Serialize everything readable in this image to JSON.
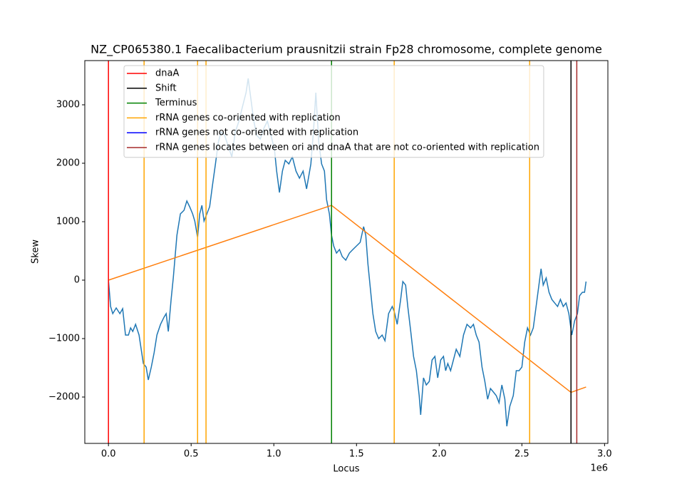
{
  "chart_data": {
    "type": "line",
    "title": "NZ_CP065380.1 Faecalibacterium prausnitzii strain Fp28 chromosome, complete genome",
    "xlabel": "Locus",
    "ylabel": "Skew",
    "x_offset_label": "1e6",
    "xlim": [
      -143000,
      3020000
    ],
    "ylim": [
      -2793,
      3756
    ],
    "xticks": [
      {
        "value": 0,
        "label": "0.0"
      },
      {
        "value": 500000,
        "label": "0.5"
      },
      {
        "value": 1000000,
        "label": "1.0"
      },
      {
        "value": 1500000,
        "label": "1.5"
      },
      {
        "value": 2000000,
        "label": "2.0"
      },
      {
        "value": 2500000,
        "label": "2.5"
      },
      {
        "value": 3000000,
        "label": "3.0"
      }
    ],
    "yticks": [
      {
        "value": -2000,
        "label": "−2000"
      },
      {
        "value": -1000,
        "label": "−1000"
      },
      0,
      1000,
      2000,
      3000
    ],
    "grid": false,
    "legend": "upper left",
    "series": [
      {
        "color": "#1f77b4",
        "x": [
          0,
          13000,
          26000,
          47000,
          69000,
          86000,
          103000,
          121000,
          134000,
          147000,
          164000,
          185000,
          198000,
          211000,
          228000,
          241000,
          259000,
          276000,
          293000,
          315000,
          336000,
          349000,
          362000,
          379000,
          392000,
          414000,
          435000,
          457000,
          474000,
          491000,
          509000,
          522000,
          539000,
          552000,
          565000,
          578000,
          595000,
          612000,
          629000,
          647000,
          664000,
          681000,
          703000,
          724000,
          746000,
          767000,
          789000,
          810000,
          832000,
          845000,
          862000,
          879000,
          897000,
          918000,
          940000,
          961000,
          983000,
          1004000,
          1017000,
          1034000,
          1052000,
          1069000,
          1091000,
          1112000,
          1134000,
          1155000,
          1177000,
          1198000,
          1224000,
          1241000,
          1254000,
          1272000,
          1289000,
          1306000,
          1319000,
          1336000,
          1349000,
          1362000,
          1379000,
          1397000,
          1414000,
          1435000,
          1457000,
          1478000,
          1500000,
          1522000,
          1543000,
          1556000,
          1569000,
          1586000,
          1599000,
          1616000,
          1634000,
          1655000,
          1672000,
          1694000,
          1716000,
          1728000,
          1746000,
          1767000,
          1780000,
          1797000,
          1810000,
          1828000,
          1845000,
          1862000,
          1879000,
          1888000,
          1905000,
          1922000,
          1940000,
          1957000,
          1974000,
          1991000,
          2009000,
          2026000,
          2039000,
          2052000,
          2069000,
          2086000,
          2103000,
          2125000,
          2147000,
          2168000,
          2190000,
          2207000,
          2224000,
          2241000,
          2259000,
          2276000,
          2293000,
          2310000,
          2328000,
          2345000,
          2362000,
          2379000,
          2397000,
          2409000,
          2427000,
          2448000,
          2466000,
          2483000,
          2500000,
          2517000,
          2534000,
          2552000,
          2569000,
          2586000,
          2603000,
          2616000,
          2629000,
          2647000,
          2664000,
          2681000,
          2698000,
          2716000,
          2733000,
          2750000,
          2767000,
          2784000,
          2802000,
          2819000,
          2836000,
          2849000,
          2866000,
          2879000,
          2888000
        ],
        "values": [
          0,
          -451,
          -573,
          -476,
          -573,
          -488,
          -939,
          -939,
          -817,
          -878,
          -756,
          -939,
          -1183,
          -1427,
          -1488,
          -1707,
          -1488,
          -1244,
          -939,
          -756,
          -634,
          -573,
          -878,
          -329,
          37,
          768,
          1134,
          1195,
          1354,
          1256,
          1134,
          1012,
          732,
          1134,
          1280,
          1012,
          1134,
          1256,
          1622,
          1988,
          2354,
          2537,
          2476,
          2293,
          2110,
          2537,
          2720,
          2963,
          3207,
          3451,
          3085,
          2720,
          2476,
          2415,
          2598,
          2720,
          2476,
          2232,
          1866,
          1500,
          1866,
          2049,
          1988,
          2110,
          1866,
          1744,
          1866,
          1561,
          1988,
          2598,
          3207,
          2354,
          1988,
          1866,
          1378,
          1134,
          768,
          585,
          463,
          524,
          402,
          341,
          463,
          524,
          585,
          646,
          915,
          768,
          280,
          -207,
          -573,
          -878,
          -1000,
          -939,
          -1037,
          -573,
          -451,
          -537,
          -756,
          -329,
          -24,
          -85,
          -451,
          -878,
          -1305,
          -1549,
          -1976,
          -2305,
          -1671,
          -1793,
          -1732,
          -1366,
          -1305,
          -1671,
          -1366,
          -1305,
          -1549,
          -1427,
          -1549,
          -1366,
          -1183,
          -1305,
          -939,
          -756,
          -817,
          -756,
          -939,
          -1061,
          -1488,
          -1732,
          -2037,
          -1854,
          -1915,
          -1976,
          -2098,
          -1793,
          -2037,
          -2500,
          -2159,
          -1976,
          -1549,
          -1549,
          -1488,
          -1061,
          -817,
          -939,
          -817,
          -451,
          -85,
          195,
          -85,
          37,
          -207,
          -329,
          -390,
          -451,
          -329,
          -451,
          -390,
          -573,
          -939,
          -695,
          -573,
          -268,
          -207,
          -207,
          -24
        ]
      },
      {
        "color": "#ff7f0e",
        "x": [
          0,
          1349000,
          2797000,
          2888000
        ],
        "values": [
          0,
          1280,
          -1920,
          -1829
        ]
      }
    ],
    "vlines": [
      {
        "name": "dnaA",
        "color": "red",
        "x": [
          0
        ]
      },
      {
        "name": "Shift",
        "color": "black",
        "x": [
          2797000
        ]
      },
      {
        "name": "Terminus",
        "color": "green",
        "x": [
          1349000
        ]
      },
      {
        "name": "rRNA genes co-oriented with replication",
        "color": "orange",
        "x": [
          215500,
          539000,
          590000,
          1728000,
          2547000
        ]
      },
      {
        "name": "rRNA genes not co-oriented with replication",
        "color": "blue",
        "x": []
      },
      {
        "name": "rRNA genes locates between ori and dnaA that are not co-oriented with replication",
        "color": "brown",
        "x": [
          2832000
        ]
      }
    ]
  }
}
